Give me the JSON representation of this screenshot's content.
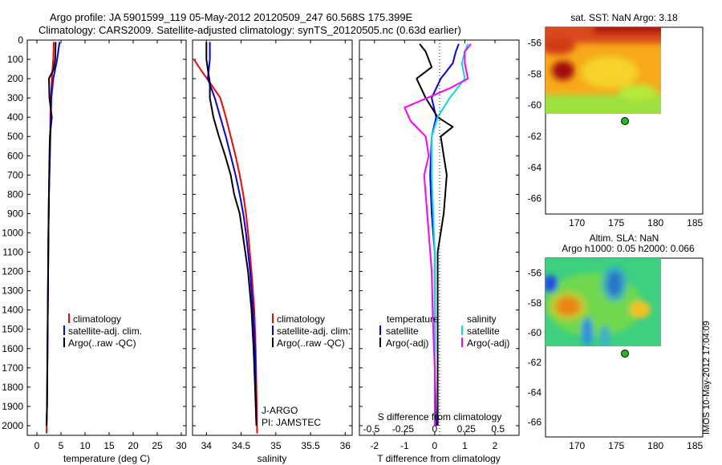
{
  "header": {
    "title_line1": "Argo profile: JA 5901599_119 05-May-2012 20120509_247 60.568S 175.399E",
    "title_line2": "Climatology: CARS2009. Satellite-adjusted climatology: synTS_20120505.nc (0.63d earlier)"
  },
  "side_label": "IMOS 10-May-2012 17:04:09",
  "colors": {
    "climatology": "#ff0000",
    "satellite": "#0000ff",
    "argo": "#000000",
    "cyan": "#00e0e0",
    "magenta": "#ff00ff",
    "marker": "#22bb22"
  },
  "chart_data": [
    {
      "id": "temperature",
      "type": "line",
      "xlabel": "temperature (deg C)",
      "xlim": [
        -2,
        31
      ],
      "xticks": [
        "0",
        "5",
        "10",
        "15",
        "20",
        "25",
        "30"
      ],
      "ylim": [
        0,
        2050
      ],
      "yticks": [
        "0",
        "100",
        "200",
        "300",
        "400",
        "500",
        "600",
        "700",
        "800",
        "900",
        "1000",
        "1100",
        "1200",
        "1300",
        "1400",
        "1500",
        "1600",
        "1700",
        "1800",
        "1900",
        "2000"
      ],
      "legend": [
        "climatology",
        "satellite-adj. clim.",
        "Argo(..raw -QC)"
      ],
      "series": [
        {
          "name": "climatology",
          "points": [
            [
              3.5,
              10
            ],
            [
              3.4,
              100
            ],
            [
              3.1,
              200
            ],
            [
              2.9,
              300
            ],
            [
              2.8,
              400
            ],
            [
              2.7,
              600
            ],
            [
              2.5,
              800
            ],
            [
              2.4,
              1000
            ],
            [
              2.3,
              1300
            ],
            [
              2.2,
              1600
            ],
            [
              2.1,
              1900
            ],
            [
              2.0,
              2040
            ]
          ]
        },
        {
          "name": "satellite-adj. clim.",
          "points": [
            [
              4.7,
              10
            ],
            [
              4.2,
              100
            ],
            [
              3.4,
              200
            ],
            [
              3.0,
              300
            ],
            [
              2.9,
              400
            ],
            [
              2.7,
              600
            ],
            [
              2.5,
              800
            ],
            [
              2.4,
              1000
            ],
            [
              2.3,
              1300
            ],
            [
              2.2,
              1600
            ],
            [
              2.1,
              1900
            ],
            [
              2.0,
              2000
            ]
          ]
        },
        {
          "name": "Argo(..raw -QC)",
          "points": [
            [
              3.9,
              10
            ],
            [
              3.8,
              100
            ],
            [
              3.5,
              150
            ],
            [
              2.5,
              200
            ],
            [
              2.6,
              300
            ],
            [
              3.1,
              400
            ],
            [
              2.7,
              500
            ],
            [
              2.6,
              600
            ],
            [
              2.5,
              800
            ],
            [
              2.4,
              1000
            ],
            [
              2.3,
              1300
            ],
            [
              2.2,
              1600
            ],
            [
              2.1,
              1900
            ],
            [
              2.0,
              2000
            ]
          ]
        }
      ]
    },
    {
      "id": "salinity",
      "type": "line",
      "xlabel": "salinity",
      "xlim": [
        33.8,
        36.1
      ],
      "xticks": [
        "34",
        "34.5",
        "35",
        "35.5",
        "36"
      ],
      "ylim": [
        0,
        2050
      ],
      "legend": [
        "climatology",
        "satellite-adj. clim.",
        "Argo(..raw -QC)"
      ],
      "annotation": [
        "J-ARGO",
        "PI: JAMSTEC"
      ],
      "series": [
        {
          "name": "climatology",
          "points": [
            [
              33.82,
              100
            ],
            [
              33.93,
              160
            ],
            [
              34.05,
              220
            ],
            [
              34.2,
              300
            ],
            [
              34.28,
              400
            ],
            [
              34.35,
              500
            ],
            [
              34.42,
              600
            ],
            [
              34.48,
              700
            ],
            [
              34.53,
              800
            ],
            [
              34.57,
              900
            ],
            [
              34.6,
              1000
            ],
            [
              34.65,
              1200
            ],
            [
              34.69,
              1400
            ],
            [
              34.71,
              1600
            ],
            [
              34.72,
              1800
            ],
            [
              34.73,
              2040
            ]
          ]
        },
        {
          "name": "satellite-adj. clim.",
          "points": [
            [
              34.05,
              10
            ],
            [
              34.05,
              100
            ],
            [
              34.02,
              200
            ],
            [
              34.12,
              300
            ],
            [
              34.2,
              400
            ],
            [
              34.28,
              500
            ],
            [
              34.35,
              600
            ],
            [
              34.42,
              700
            ],
            [
              34.48,
              800
            ],
            [
              34.53,
              900
            ],
            [
              34.57,
              1000
            ],
            [
              34.63,
              1200
            ],
            [
              34.67,
              1400
            ],
            [
              34.7,
              1600
            ],
            [
              34.71,
              1800
            ],
            [
              34.72,
              2000
            ]
          ]
        },
        {
          "name": "Argo(..raw -QC)",
          "points": [
            [
              34.0,
              10
            ],
            [
              34.0,
              100
            ],
            [
              34.02,
              150
            ],
            [
              34.05,
              220
            ],
            [
              34.05,
              300
            ],
            [
              34.1,
              400
            ],
            [
              34.18,
              500
            ],
            [
              34.27,
              600
            ],
            [
              34.35,
              700
            ],
            [
              34.4,
              800
            ],
            [
              34.48,
              900
            ],
            [
              34.52,
              1000
            ],
            [
              34.6,
              1200
            ],
            [
              34.65,
              1400
            ],
            [
              34.68,
              1600
            ],
            [
              34.7,
              1800
            ],
            [
              34.72,
              2000
            ]
          ]
        }
      ]
    },
    {
      "id": "difference",
      "type": "line",
      "xlabel": "T difference from climatology",
      "xlabel_top": "S difference from climatology",
      "xlim": [
        -2.5,
        2.8
      ],
      "xticks": [
        "-2",
        "-1",
        "0",
        "1",
        "2"
      ],
      "xticks_top": [
        "-0.5",
        "-0.25",
        "0",
        "0.25",
        "0.5"
      ],
      "ylim": [
        0,
        2050
      ],
      "legend_titles": [
        "temperature",
        "salinity"
      ],
      "legend_t": [
        "satellite",
        "Argo(-adj)"
      ],
      "legend_s": [
        "satellite",
        "Argo(-adj)"
      ],
      "series": [
        {
          "name": "temperature satellite",
          "points": [
            [
              0.8,
              20
            ],
            [
              0.7,
              60
            ],
            [
              0.6,
              120
            ],
            [
              0.2,
              200
            ],
            [
              -0.1,
              300
            ],
            [
              0.05,
              400
            ],
            [
              -0.1,
              500
            ],
            [
              -0.15,
              700
            ],
            [
              -0.1,
              900
            ],
            [
              0.0,
              1100
            ],
            [
              0.0,
              1400
            ],
            [
              0.0,
              1700
            ],
            [
              0.05,
              2000
            ]
          ]
        },
        {
          "name": "temperature Argo(-adj)",
          "points": [
            [
              -0.5,
              20
            ],
            [
              -0.3,
              60
            ],
            [
              -0.1,
              140
            ],
            [
              -0.6,
              200
            ],
            [
              -0.3,
              300
            ],
            [
              0.1,
              400
            ],
            [
              0.6,
              450
            ],
            [
              0.2,
              500
            ],
            [
              0.3,
              600
            ],
            [
              0.4,
              700
            ],
            [
              0.3,
              900
            ],
            [
              0.1,
              1100
            ],
            [
              0.1,
              1400
            ],
            [
              0.1,
              1700
            ],
            [
              0.1,
              2000
            ]
          ]
        },
        {
          "name": "salinity satellite",
          "points": [
            [
              1.1,
              20
            ],
            [
              1.0,
              60
            ],
            [
              0.9,
              120
            ],
            [
              1.0,
              200
            ],
            [
              0.5,
              300
            ],
            [
              0.1,
              400
            ],
            [
              -0.1,
              500
            ],
            [
              -0.1,
              700
            ],
            [
              -0.05,
              900
            ],
            [
              0.0,
              1100
            ],
            [
              0.0,
              1400
            ],
            [
              0.0,
              1700
            ],
            [
              0.0,
              2000
            ]
          ]
        },
        {
          "name": "salinity Argo(-adj)",
          "points": [
            [
              1.2,
              20
            ],
            [
              1.0,
              60
            ],
            [
              1.0,
              120
            ],
            [
              1.1,
              200
            ],
            [
              0.5,
              250
            ],
            [
              -1.0,
              350
            ],
            [
              -0.8,
              420
            ],
            [
              -0.3,
              500
            ],
            [
              -0.2,
              600
            ],
            [
              -0.35,
              700
            ],
            [
              -0.3,
              800
            ],
            [
              -0.2,
              1000
            ],
            [
              -0.1,
              1200
            ],
            [
              -0.05,
              1500
            ],
            [
              0.0,
              1700
            ],
            [
              0.0,
              2000
            ]
          ]
        }
      ]
    },
    {
      "id": "sst_map",
      "type": "heatmap",
      "title": "sat. SST: NaN Argo: 3.18",
      "xlim": [
        166,
        186
      ],
      "ylim": [
        -67,
        -55
      ],
      "xticks": [
        "170",
        "175",
        "180",
        "185"
      ],
      "yticks": [
        "-56",
        "-58",
        "-60",
        "-62",
        "-64",
        "-66"
      ],
      "marker": [
        175.4,
        -60.57
      ]
    },
    {
      "id": "sla_map",
      "type": "heatmap",
      "title": "Altim. SLA: NaN",
      "subtitle": "Argo h1000: 0.05 h2000: 0.066",
      "xlim": [
        166,
        186
      ],
      "ylim": [
        -67,
        -55
      ],
      "xticks": [
        "170",
        "175",
        "180",
        "185"
      ],
      "yticks": [
        "-56",
        "-58",
        "-60",
        "-62",
        "-64",
        "-66"
      ],
      "marker": [
        175.4,
        -60.57
      ]
    }
  ]
}
